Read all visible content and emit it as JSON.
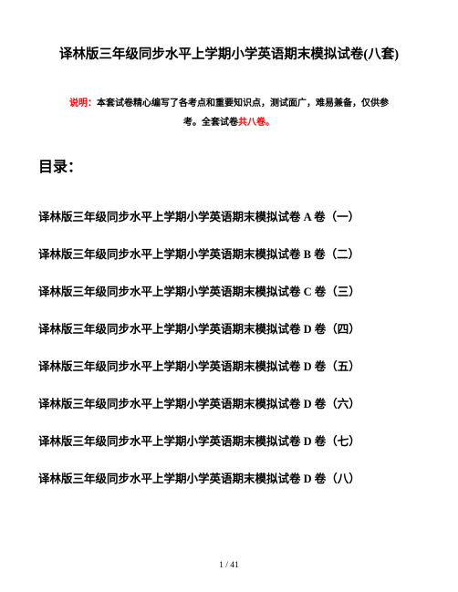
{
  "title": "译林版三年级同步水平上学期小学英语期末模拟试卷(八套)",
  "note": {
    "lead": "说明：",
    "body1": "本套试卷精心编写了各考点和重要知识点，测试面广，难易兼备，仅供参",
    "body2": "考。全套试卷",
    "tail": "共八卷。"
  },
  "toc_head": "目录：",
  "toc": [
    "译林版三年级同步水平上学期小学英语期末模拟试卷 A 卷（一）",
    "译林版三年级同步水平上学期小学英语期末模拟试卷 B 卷（二）",
    "译林版三年级同步水平上学期小学英语期末模拟试卷 C 卷（三）",
    "译林版三年级同步水平上学期小学英语期末模拟试卷 D 卷（四）",
    "译林版三年级同步水平上学期小学英语期末模拟试卷 D 卷（五）",
    "译林版三年级同步水平上学期小学英语期末模拟试卷 D 卷（六）",
    "译林版三年级同步水平上学期小学英语期末模拟试卷 D 卷（七）",
    "译林版三年级同步水平上学期小学英语期末模拟试卷 D 卷（八）"
  ],
  "footer": "1 / 41",
  "colors": {
    "red": "#ff0000",
    "black": "#000000",
    "bg": "#ffffff"
  }
}
